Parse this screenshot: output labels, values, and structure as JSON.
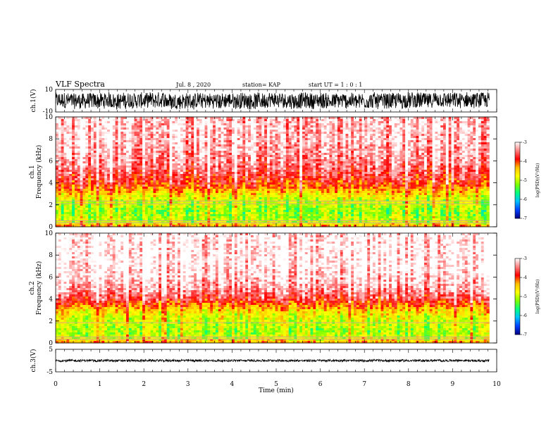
{
  "header": {
    "title": "VLF Spectra",
    "date": "Jul. 8 , 2020",
    "station": "station= KAP",
    "start": "start UT = 1 : 0 : 1"
  },
  "chart_data": {
    "type": "heatmap",
    "title": "VLF Spectra",
    "xlabel": "Time (min)",
    "xlim": [
      0,
      10
    ],
    "x_ticks": [
      "0",
      "1",
      "2",
      "3",
      "4",
      "5",
      "6",
      "7",
      "8",
      "9",
      "10"
    ],
    "panels": [
      {
        "name": "ch1_waveform",
        "type": "line",
        "ylabel": "ch.1(V)",
        "ylim": [
          -10,
          10
        ],
        "y_ticks": [
          "10",
          "-10"
        ],
        "baseline": 0,
        "noise_amplitude": 7,
        "color": "#000000",
        "data_xlim": [
          0,
          9.83
        ]
      },
      {
        "name": "ch1_spectrogram",
        "type": "heatmap",
        "ylabel": "Frequency (kHz)",
        "channel_label": "ch.1",
        "ylim": [
          0,
          10
        ],
        "y_ticks": [
          "0",
          "2",
          "4",
          "6",
          "8",
          "10"
        ],
        "data_xlim": [
          0,
          9.83
        ],
        "colorbar": {
          "label": "log(PSD)(V²/Hz)",
          "range": [
            -7,
            -3
          ],
          "ticks": [
            "-3",
            "-4",
            "-5",
            "-6",
            "-7"
          ],
          "colors": [
            "#000080",
            "#0040ff",
            "#00c0ff",
            "#00ff80",
            "#80ff00",
            "#ffff00",
            "#ffc000",
            "#ff0000",
            "#ff8080",
            "#ffffff"
          ]
        },
        "intensity_profile": {
          "freq_kHz": [
            0,
            0.5,
            1,
            1.5,
            2,
            2.5,
            3,
            3.5,
            4,
            5,
            6,
            7,
            8,
            9,
            10
          ],
          "log_psd": [
            -4.2,
            -5.0,
            -5.1,
            -5.2,
            -5.0,
            -4.9,
            -4.6,
            -4.2,
            -3.9,
            -3.6,
            -3.4,
            -3.3,
            -3.2,
            -3.2,
            -3.2
          ]
        },
        "horizontal_lines_kHz": [
          0.35,
          0.55,
          2.1,
          2.35
        ]
      },
      {
        "name": "ch2_spectrogram",
        "type": "heatmap",
        "ylabel": "Frequency (kHz)",
        "channel_label": "ch.2",
        "ylim": [
          0,
          10
        ],
        "y_ticks": [
          "0",
          "2",
          "4",
          "6",
          "8",
          "10"
        ],
        "data_xlim": [
          0,
          9.83
        ],
        "colorbar": {
          "label": "log(PSD)(V²/Hz)",
          "range": [
            -7,
            -3
          ],
          "ticks": [
            "-3",
            "-4",
            "-5",
            "-6",
            "-7"
          ],
          "colors": [
            "#000080",
            "#0040ff",
            "#00c0ff",
            "#00ff80",
            "#80ff00",
            "#ffff00",
            "#ffc000",
            "#ff0000",
            "#ff8080",
            "#ffffff"
          ]
        },
        "intensity_profile": {
          "freq_kHz": [
            0,
            0.5,
            1,
            1.5,
            2,
            2.5,
            3,
            3.5,
            4,
            5,
            6,
            7,
            8,
            9,
            10
          ],
          "log_psd": [
            -4.2,
            -4.9,
            -5.1,
            -5.0,
            -4.9,
            -4.8,
            -4.5,
            -4.1,
            -3.7,
            -3.3,
            -3.1,
            -3.0,
            -3.0,
            -3.0,
            -3.0
          ]
        },
        "horizontal_lines_kHz": [
          0.35,
          0.55,
          1.85
        ]
      },
      {
        "name": "ch3_waveform",
        "type": "line",
        "ylabel": "ch.3(V)",
        "ylim": [
          -5,
          5
        ],
        "y_ticks": [
          "5",
          "-5"
        ],
        "baseline": 0,
        "noise_amplitude": 0.5,
        "color": "#000000",
        "data_xlim": [
          0,
          9.83
        ]
      }
    ]
  }
}
